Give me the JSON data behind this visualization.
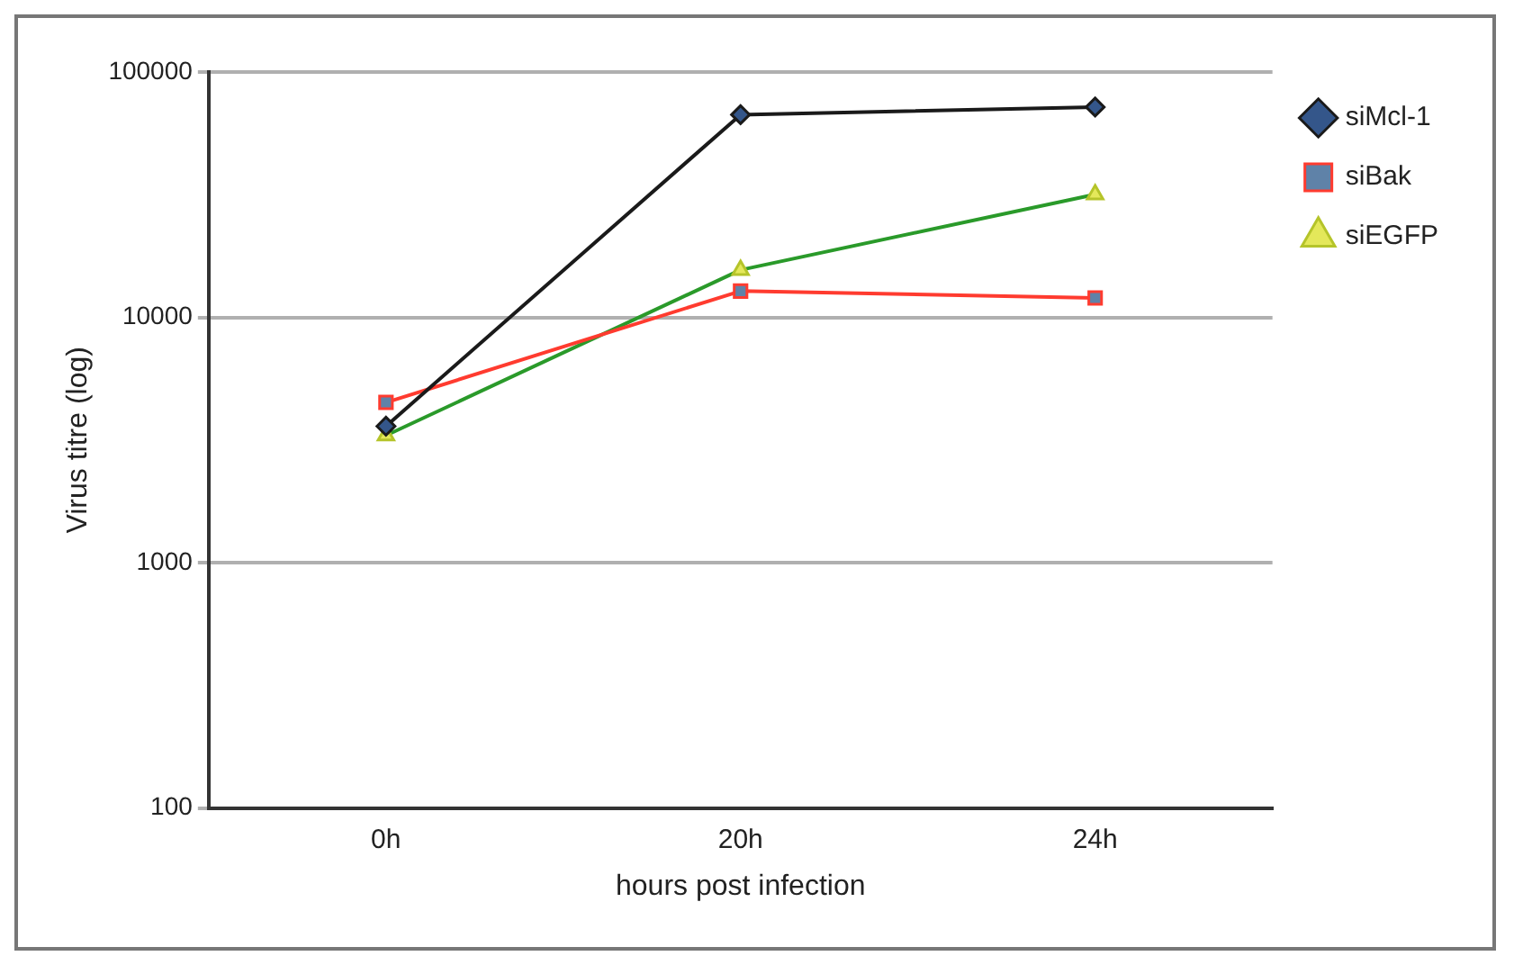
{
  "chart_data": {
    "type": "line",
    "xlabel": "hours post infection",
    "ylabel": "Virus titre (log)",
    "categories": [
      "0h",
      "20h",
      "24h"
    ],
    "series": [
      {
        "name": "siMcl-1",
        "color": "#1a1a1a",
        "marker": "diamond",
        "values": [
          3600,
          67000,
          72000
        ]
      },
      {
        "name": "siBak",
        "color": "#ff3b2f",
        "marker": "square",
        "values": [
          4500,
          12800,
          12000
        ]
      },
      {
        "name": "siEGFP",
        "color": "#2a9a2a",
        "marker": "triangle",
        "values": [
          3300,
          15600,
          31700
        ]
      }
    ],
    "log": "y",
    "ylim": [
      100,
      100000
    ],
    "yticks": [
      100,
      1000,
      10000,
      100000
    ],
    "grid": "y",
    "legend": "top right",
    "line_style": "solid"
  }
}
